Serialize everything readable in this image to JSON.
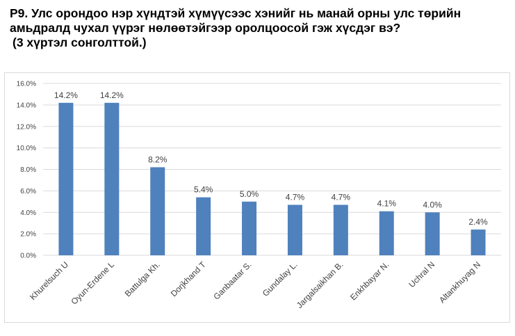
{
  "question": {
    "line1": "P9. Улс орондоо нэр хүндтэй хүмүүсээс хэнийг нь манай орны улс төрийн",
    "line2": "амьдралд чухал үүрэг нөлөөтэйгээр оролцоосой гэж хүсдэг вэ?",
    "line3": "(3 хүртэл сонголттой.)"
  },
  "chart_data": {
    "type": "bar",
    "categories": [
      "Khurelsuch U",
      "Oyun-Erdene L",
      "Battulga Kh.",
      "Dorjkhand T",
      "Ganbaatar S.",
      "Gundalay L.",
      "Jargalsaikhan B.",
      "Enkhbayar N.",
      "Uchral N",
      "Altankhuyag N"
    ],
    "values": [
      14.2,
      14.2,
      8.2,
      5.4,
      5.0,
      4.7,
      4.7,
      4.1,
      4.0,
      2.4
    ],
    "value_labels": [
      "14.2%",
      "14.2%",
      "8.2%",
      "5.4%",
      "5.0%",
      "4.7%",
      "4.7%",
      "4.1%",
      "4.0%",
      "2.4%"
    ],
    "yticks": [
      "0.0%",
      "2.0%",
      "4.0%",
      "6.0%",
      "8.0%",
      "10.0%",
      "12.0%",
      "14.0%",
      "16.0%"
    ],
    "ylim": [
      0,
      16
    ],
    "ytick_step": 2,
    "grid": true,
    "legend": "none",
    "bar_color": "#4f81bd",
    "grid_color": "#d9d9d9",
    "text_color": "#404040"
  }
}
